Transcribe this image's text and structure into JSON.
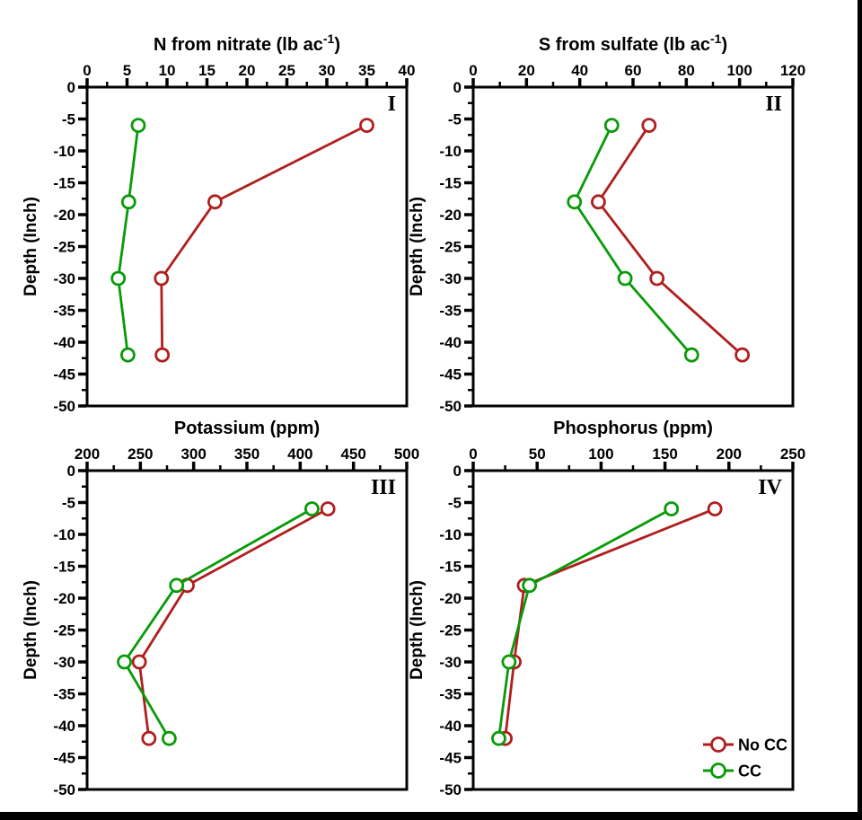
{
  "page": {
    "background_color": "#ffffff",
    "right_border_color": "#000000",
    "bottom_bar_color": "#000000",
    "axis_color": "#000000"
  },
  "legend": {
    "position": "inside-panel-IV-bottom-right",
    "items": [
      {
        "label": "No CC",
        "color": "#b01e1e"
      },
      {
        "label": "CC",
        "color": "#089b08"
      }
    ]
  },
  "chart_data": [
    {
      "type": "line",
      "panel": "I",
      "title_text": "N from nitrate (lb ac⁻¹)",
      "title": {
        "pre": "N from nitrate (lb ac",
        "sup": "-1",
        "post": ")"
      },
      "xlim": [
        0,
        40
      ],
      "x_ticks": [
        0,
        5,
        10,
        15,
        20,
        25,
        30,
        35,
        40
      ],
      "x_minor_step": 2.5,
      "ylabel": "Depth (Inch)",
      "ylim": [
        0,
        -50
      ],
      "y_major_step": 5,
      "y_minor_step": 2.5,
      "depths": [
        -6,
        -18,
        -30,
        -42
      ],
      "series": [
        {
          "name": "No CC",
          "color": "#b01e1e",
          "values": [
            35,
            16,
            9.3,
            9.4
          ]
        },
        {
          "name": "CC",
          "color": "#089b08",
          "values": [
            6.4,
            5.2,
            3.9,
            5.1
          ]
        }
      ]
    },
    {
      "type": "line",
      "panel": "II",
      "title_text": "S from sulfate (lb ac⁻¹)",
      "title": {
        "pre": "S from sulfate (lb ac",
        "sup": "-1",
        "post": ")"
      },
      "xlim": [
        0,
        120
      ],
      "x_ticks": [
        0,
        20,
        40,
        60,
        80,
        100,
        120
      ],
      "x_minor_step": 10,
      "ylabel": "Depth (Inch)",
      "ylim": [
        0,
        -50
      ],
      "y_major_step": 5,
      "y_minor_step": 2.5,
      "depths": [
        -6,
        -18,
        -30,
        -42
      ],
      "series": [
        {
          "name": "No CC",
          "color": "#b01e1e",
          "values": [
            66,
            47,
            69,
            101
          ]
        },
        {
          "name": "CC",
          "color": "#089b08",
          "values": [
            52,
            38,
            57,
            82
          ]
        }
      ]
    },
    {
      "type": "line",
      "panel": "III",
      "title_text": "Potassium (ppm)",
      "title": {
        "pre": "Potassium (ppm)",
        "sup": "",
        "post": ""
      },
      "xlim": [
        200,
        500
      ],
      "x_ticks": [
        200,
        250,
        300,
        350,
        400,
        450,
        500
      ],
      "x_minor_step": 25,
      "ylabel": "Depth (Inch)",
      "ylim": [
        0,
        -50
      ],
      "y_major_step": 5,
      "y_minor_step": 2.5,
      "depths": [
        -6,
        -18,
        -30,
        -42
      ],
      "series": [
        {
          "name": "No CC",
          "color": "#b01e1e",
          "values": [
            426,
            294,
            249,
            258
          ]
        },
        {
          "name": "CC",
          "color": "#089b08",
          "values": [
            411,
            284,
            235,
            277
          ]
        }
      ]
    },
    {
      "type": "line",
      "panel": "IV",
      "title_text": "Phosphorus (ppm)",
      "title": {
        "pre": "Phosphorus (ppm)",
        "sup": "",
        "post": ""
      },
      "xlim": [
        0,
        250
      ],
      "x_ticks": [
        0,
        50,
        100,
        150,
        200,
        250
      ],
      "x_minor_step": 25,
      "ylabel": "Depth (Inch)",
      "ylim": [
        0,
        -50
      ],
      "y_major_step": 5,
      "y_minor_step": 2.5,
      "depths": [
        -6,
        -18,
        -30,
        -42
      ],
      "series": [
        {
          "name": "No CC",
          "color": "#b01e1e",
          "values": [
            189,
            40,
            32,
            25
          ]
        },
        {
          "name": "CC",
          "color": "#089b08",
          "values": [
            155,
            44,
            28,
            20
          ]
        }
      ]
    }
  ]
}
